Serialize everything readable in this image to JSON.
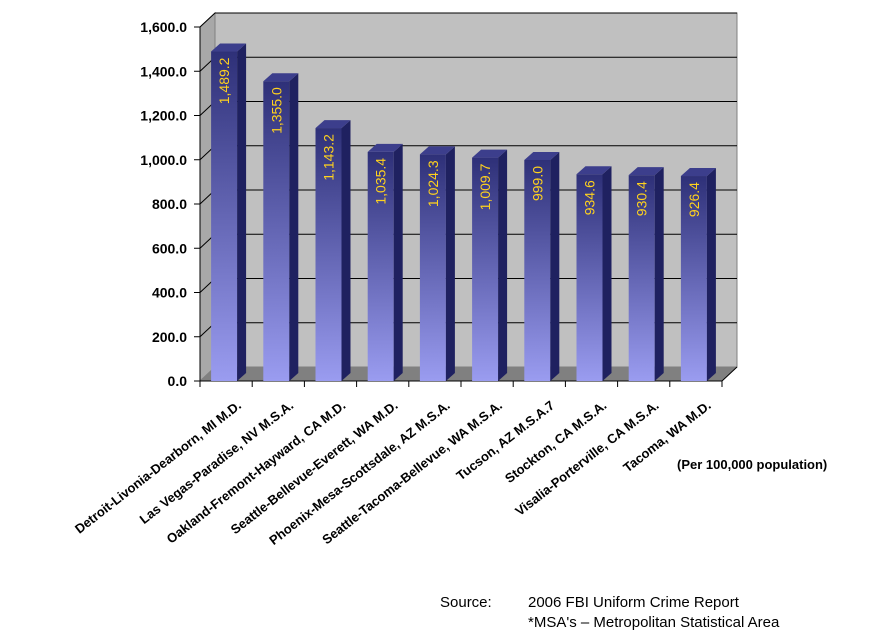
{
  "chart_data": {
    "type": "bar",
    "categories": [
      "Detroit-Livonia-Dearborn, MI M.D.",
      "Las Vegas-Paradise, NV M.S.A.",
      "Oakland-Fremont-Hayward, CA M.D.",
      "Seattle-Bellevue-Everett, WA M.D.",
      "Phoenix-Mesa-Scottsdale, AZ M.S.A.",
      "Seattle-Tacoma-Bellevue, WA M.S.A.",
      "Tucson, AZ M.S.A.7",
      "Stockton, CA M.S.A.",
      "Visalia-Porterville, CA M.S.A.",
      "Tacoma, WA M.D."
    ],
    "values": [
      1489.2,
      1355.0,
      1143.2,
      1035.4,
      1024.3,
      1009.7,
      999.0,
      934.6,
      930.4,
      926.4
    ],
    "value_labels": [
      "1,489.2",
      "1,355.0",
      "1,143.2",
      "1,035.4",
      "1,024.3",
      "1,009.7",
      "999.0",
      "934.6",
      "930.4",
      "926.4"
    ],
    "ylim": [
      0,
      1600
    ],
    "yticks": [
      0,
      200,
      400,
      600,
      800,
      1000,
      1200,
      1400,
      1600
    ],
    "ytick_labels": [
      "0.0",
      "200.0",
      "400.0",
      "600.0",
      "800.0",
      "1,000.0",
      "1,200.0",
      "1,400.0",
      "1,600.0"
    ],
    "grid": true,
    "style": "3d-column",
    "colors": {
      "bar_top": "#2e3078",
      "bar_bottom": "#9a9cf0",
      "bar_side": "#1f2160",
      "bar_cap": "#3c3e8c",
      "value_label": "#ffd21e",
      "plot_back": "#c0c0c0",
      "plot_floor": "#808080",
      "gridline": "#000000"
    }
  },
  "notes": {
    "per_population": "(Per 100,000 population)",
    "source_label": "Source:",
    "source_text": "2006 FBI Uniform Crime Report",
    "msa_text": "*MSA's – Metropolitan Statistical Area"
  }
}
